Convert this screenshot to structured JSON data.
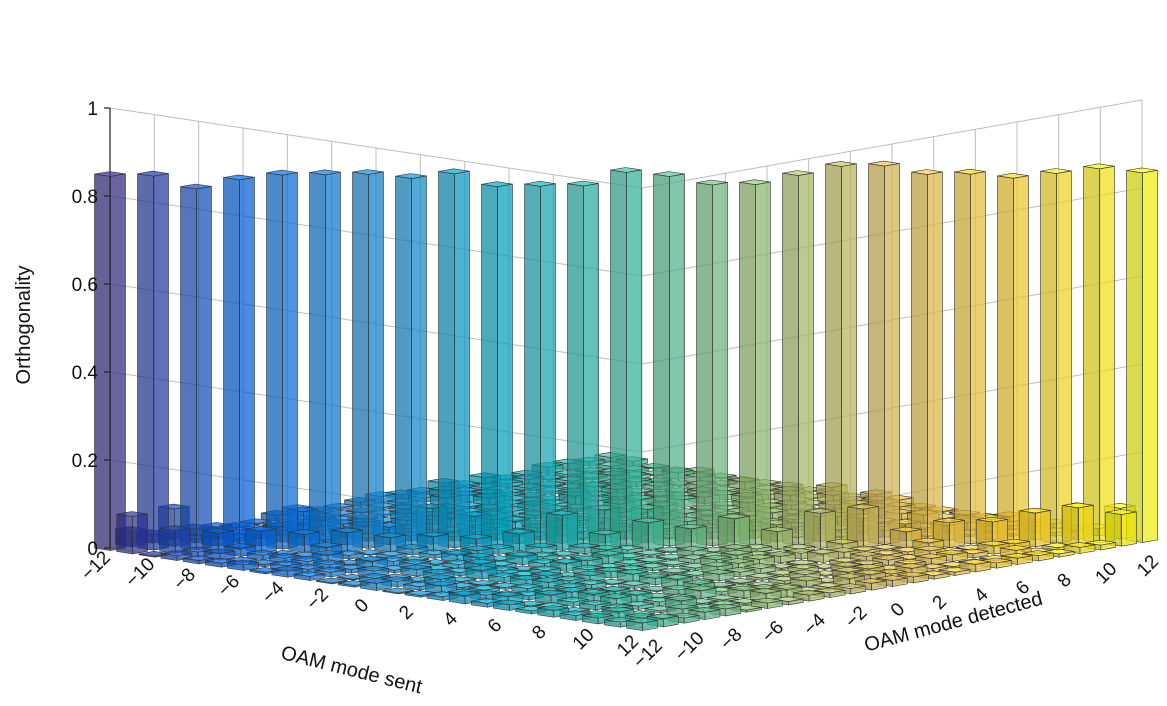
{
  "chart_data": {
    "type": "bar3d",
    "title": "",
    "zlabel": "Orthogonality",
    "xlabel": "OAM mode sent",
    "ylabel": "OAM mode detected",
    "zlim": [
      0,
      1
    ],
    "z_ticks": [
      "0",
      "0.2",
      "0.4",
      "0.6",
      "0.8",
      "1"
    ],
    "z_tick_values": [
      0,
      0.2,
      0.4,
      0.6,
      0.8,
      1
    ],
    "x_ticks": [
      "−12",
      "−10",
      "−8",
      "−6",
      "−4",
      "−2",
      "0",
      "2",
      "4",
      "6",
      "8",
      "10",
      "12"
    ],
    "x_tick_values": [
      -12,
      -10,
      -8,
      -6,
      -4,
      -2,
      0,
      2,
      4,
      6,
      8,
      10,
      12
    ],
    "y_ticks": [
      "−12",
      "−10",
      "−8",
      "−6",
      "−4",
      "−2",
      "0",
      "2",
      "4",
      "6",
      "8",
      "10",
      "12"
    ],
    "y_tick_values": [
      -12,
      -10,
      -8,
      -6,
      -4,
      -2,
      0,
      2,
      4,
      6,
      8,
      10,
      12
    ],
    "modes": [
      -12,
      -11,
      -10,
      -9,
      -8,
      -7,
      -6,
      -5,
      -4,
      -3,
      -2,
      -1,
      0,
      1,
      2,
      3,
      4,
      5,
      6,
      7,
      8,
      9,
      10,
      11,
      12
    ],
    "diagonal_values": [
      0.85,
      0.85,
      0.82,
      0.84,
      0.85,
      0.85,
      0.85,
      0.84,
      0.85,
      0.82,
      0.82,
      0.82,
      0.85,
      0.84,
      0.82,
      0.82,
      0.84,
      0.86,
      0.86,
      0.84,
      0.84,
      0.83,
      0.84,
      0.85,
      0.84
    ],
    "crosstalk_max": 0.09,
    "grid": true,
    "colormap": "parula",
    "colors": [
      "#352a87",
      "#0363e1",
      "#1485d4",
      "#06a7c6",
      "#38b99e",
      "#92bf73",
      "#d9ba56",
      "#fcce2e",
      "#f9fb0e"
    ]
  }
}
